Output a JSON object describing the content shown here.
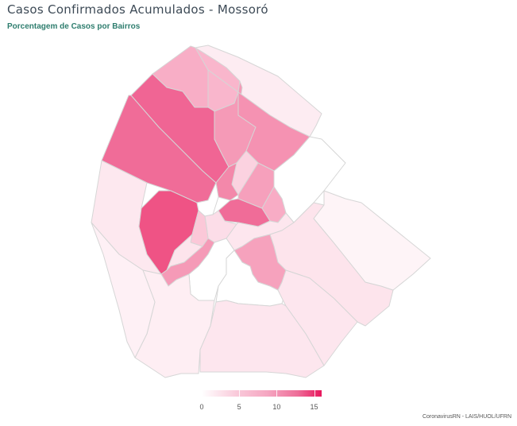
{
  "header": {
    "title": "Casos Confirmados Acumulados - Mossoró",
    "subtitle": "Porcentagem de Casos por Bairros"
  },
  "legend": {
    "colors": [
      "#ffffff",
      "#f9c8d9",
      "#f5a6c1",
      "#ee6e99",
      "#e8175d"
    ],
    "min": 0,
    "max": 16,
    "ticks": [
      {
        "value": 0,
        "label": "0"
      },
      {
        "value": 5,
        "label": "5"
      },
      {
        "value": 10,
        "label": "10"
      },
      {
        "value": 15,
        "label": "15"
      }
    ]
  },
  "source": "CoronavirusRN - LAIS/HUOL/UFRN",
  "map": {
    "neighborhoods": [
      {
        "id": "n01",
        "value": 0.5,
        "color": "#fdecf2"
      },
      {
        "id": "n02",
        "value": 4.0,
        "color": "#f8aec6"
      },
      {
        "id": "n03",
        "value": 3.5,
        "color": "#f9b6cc"
      },
      {
        "id": "n04",
        "value": 13.0,
        "color": "#f06594"
      },
      {
        "id": "n05",
        "value": 12.0,
        "color": "#f06c98"
      },
      {
        "id": "n06",
        "value": 7.0,
        "color": "#f59ab7"
      },
      {
        "id": "n07",
        "value": 7.5,
        "color": "#f592b2"
      },
      {
        "id": "n08",
        "value": 9.0,
        "color": "#f388aa"
      },
      {
        "id": "n09",
        "value": 1.0,
        "color": "#fde8ef"
      },
      {
        "id": "n10",
        "value": 15.0,
        "color": "#ef5385"
      },
      {
        "id": "n11",
        "value": 0.0,
        "color": "#ffffff"
      },
      {
        "id": "n12",
        "value": 12.0,
        "color": "#f06c98"
      },
      {
        "id": "n13",
        "value": 6.0,
        "color": "#f6a0bc"
      },
      {
        "id": "n14",
        "value": 4.5,
        "color": "#f8acc5"
      },
      {
        "id": "n15",
        "value": 2.0,
        "color": "#fbd2e0"
      },
      {
        "id": "n16",
        "value": 1.5,
        "color": "#fcdde8"
      },
      {
        "id": "n17",
        "value": 7.0,
        "color": "#f59ab7"
      },
      {
        "id": "n18",
        "value": 0.3,
        "color": "#fef4f7"
      },
      {
        "id": "n19",
        "value": 0.0,
        "color": "#ffffff"
      },
      {
        "id": "n20",
        "value": 1.0,
        "color": "#fde6ee"
      },
      {
        "id": "n21",
        "value": 1.2,
        "color": "#fde4ec"
      },
      {
        "id": "n22",
        "value": 6.0,
        "color": "#f6a2bd"
      },
      {
        "id": "n23",
        "value": 1.2,
        "color": "#fde4ec"
      },
      {
        "id": "n24",
        "value": 1.0,
        "color": "#fde6ee"
      },
      {
        "id": "n25",
        "value": 0.6,
        "color": "#feeef3"
      },
      {
        "id": "n26",
        "value": 1.0,
        "color": "#fde6ee"
      },
      {
        "id": "n27",
        "value": 0.5,
        "color": "#fef0f5"
      },
      {
        "id": "n28",
        "value": 0.2,
        "color": "#fff7fa"
      },
      {
        "id": "n29",
        "value": 0.0,
        "color": "#ffffff"
      },
      {
        "id": "n30",
        "value": 2.5,
        "color": "#fbc8d8"
      },
      {
        "id": "n31",
        "value": 0.0,
        "color": "#ffffff"
      }
    ]
  }
}
